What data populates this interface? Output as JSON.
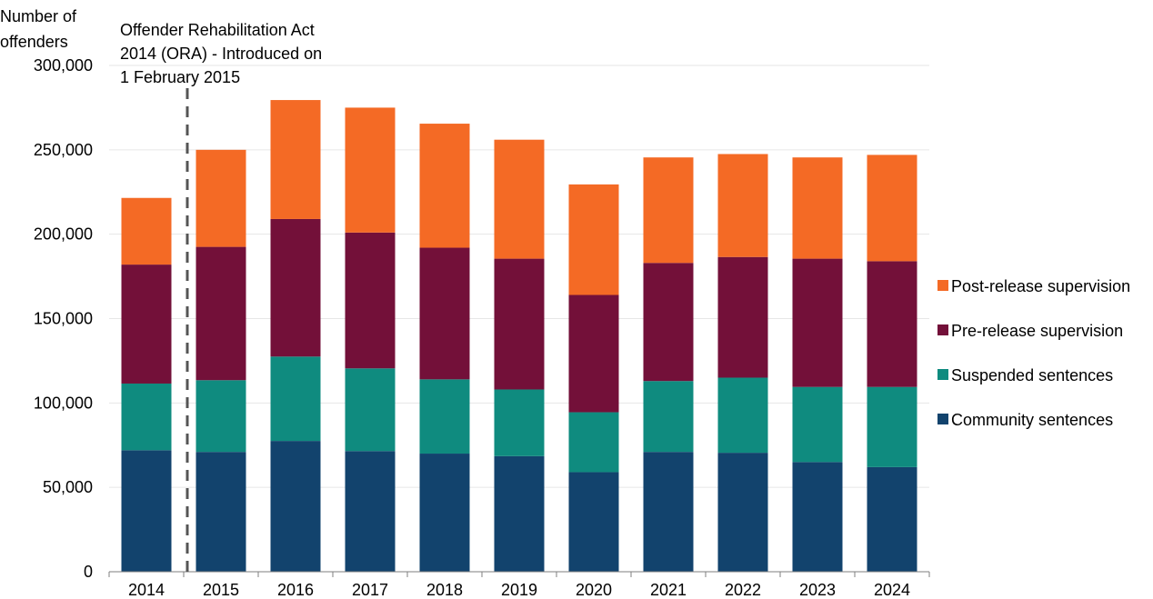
{
  "chart_data": {
    "type": "bar",
    "stacked": true,
    "ylabel_lines": [
      "Number of",
      "offenders"
    ],
    "categories": [
      "2014",
      "2015",
      "2016",
      "2017",
      "2018",
      "2019",
      "2020",
      "2021",
      "2022",
      "2023",
      "2024"
    ],
    "ylim": [
      0,
      300000
    ],
    "yticks": [
      0,
      50000,
      100000,
      150000,
      200000,
      250000,
      300000
    ],
    "ytick_labels": [
      "0",
      "50,000",
      "100,000",
      "150,000",
      "200,000",
      "250,000",
      "300,000"
    ],
    "grid": true,
    "legend_position": "right",
    "series": [
      {
        "name": "Community sentences",
        "color": "#12436d",
        "values": [
          72000,
          71000,
          77500,
          71500,
          70000,
          68500,
          59000,
          71000,
          70500,
          65000,
          62000
        ]
      },
      {
        "name": "Suspended sentences",
        "color": "#0f8b7f",
        "values": [
          39500,
          42500,
          50000,
          49000,
          44000,
          39500,
          35500,
          42000,
          44500,
          44500,
          47500
        ]
      },
      {
        "name": "Pre-release supervision",
        "color": "#731039",
        "values": [
          70500,
          79000,
          81500,
          80500,
          78000,
          77500,
          69500,
          70000,
          71500,
          76000,
          74500
        ]
      },
      {
        "name": "Post-release supervision",
        "color": "#f46a25",
        "values": [
          39500,
          57500,
          70500,
          74000,
          73500,
          70500,
          65500,
          62500,
          61000,
          60000,
          63000
        ]
      }
    ],
    "annotation": {
      "text_lines": [
        "Offender Rehabilitation Act",
        "2014 (ORA) - Introduced on",
        "1 February 2015"
      ],
      "between_categories": [
        "2014",
        "2015"
      ]
    }
  }
}
